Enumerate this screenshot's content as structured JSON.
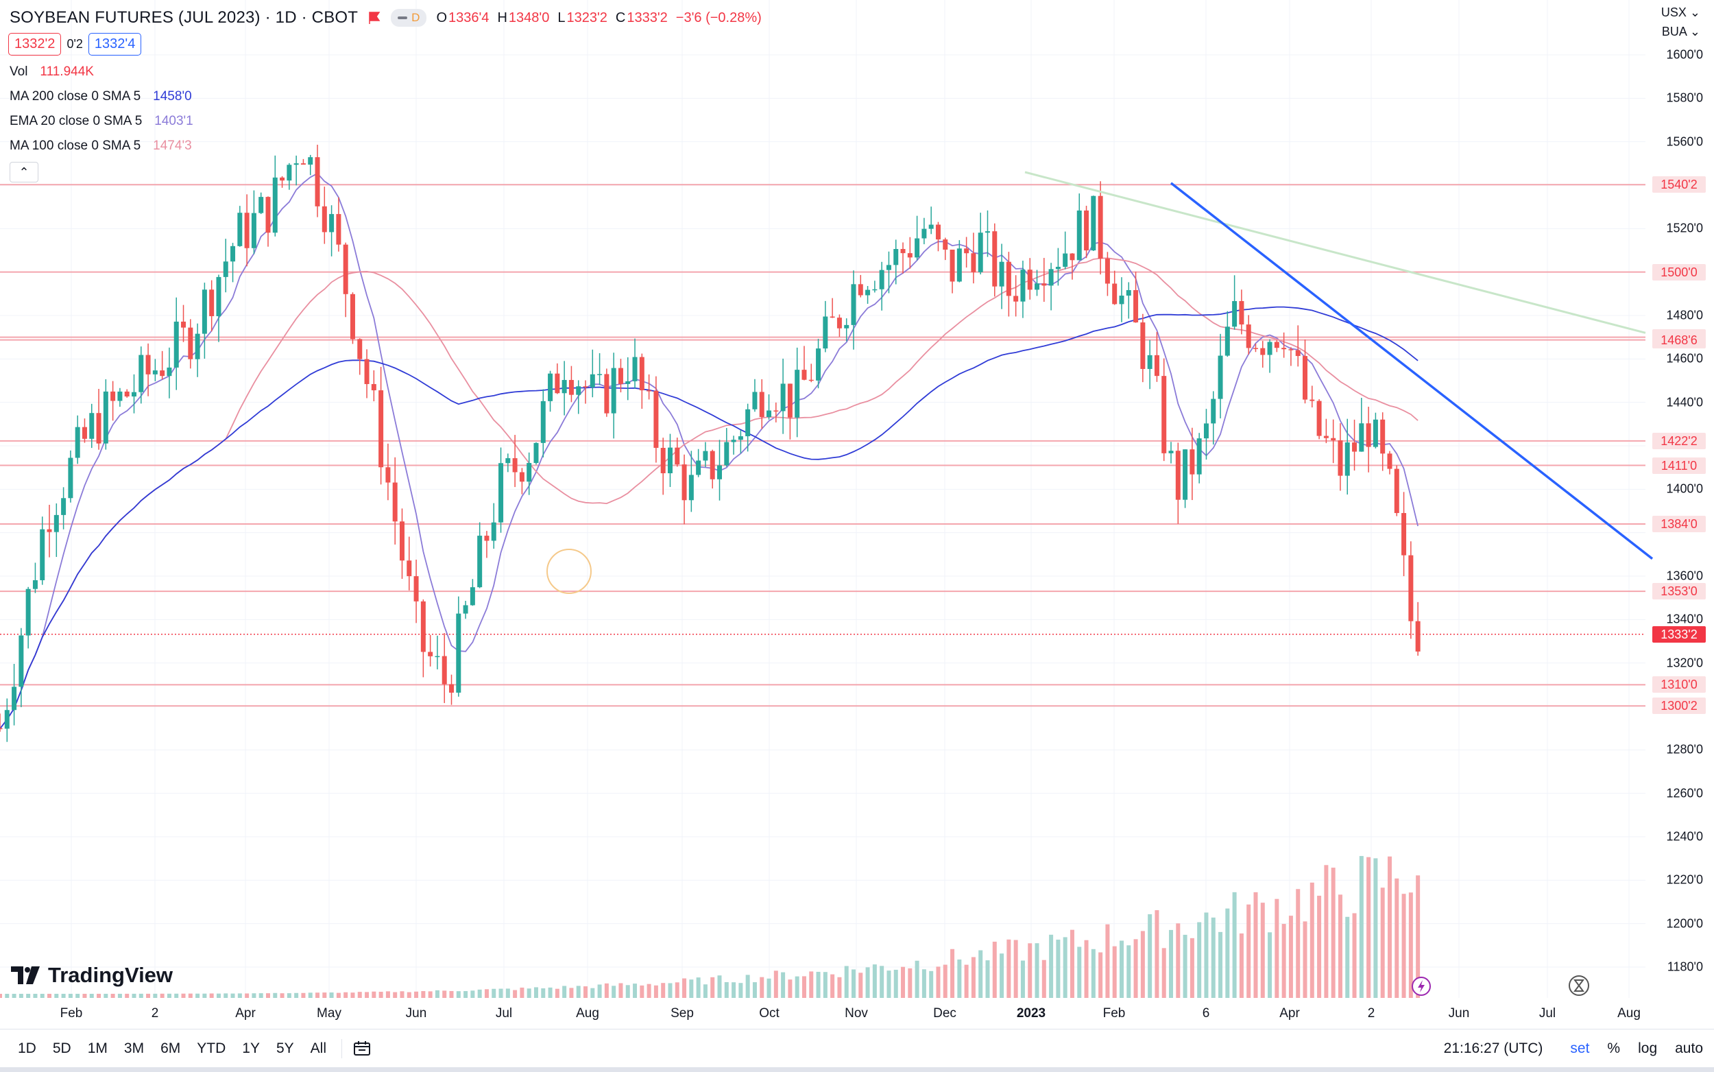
{
  "header": {
    "title": "SOYBEAN FUTURES (JUL 2023) · 1D · CBOT",
    "pill_letter": "D",
    "ohlc": [
      {
        "k": "O",
        "v": "1336'4"
      },
      {
        "k": "H",
        "v": "1348'0"
      },
      {
        "k": "L",
        "v": "1323'2"
      },
      {
        "k": "C",
        "v": "1333'2"
      }
    ],
    "change": "−3'6 (−0.28%)",
    "bid": "1332'2",
    "spread": "0'2",
    "ask": "1332'4"
  },
  "indicators": [
    {
      "label": "Vol",
      "params": "",
      "value": "111.944K",
      "color": "#f23645"
    },
    {
      "label": "MA",
      "params": "200 close 0 SMA 5",
      "value": "1458'0",
      "color": "#2f3bd6"
    },
    {
      "label": "EMA",
      "params": "20 close 0 SMA 5",
      "value": "1403'1",
      "color": "#8b7bd8"
    },
    {
      "label": "MA",
      "params": "100 close 0 SMA 5",
      "value": "1474'3",
      "color": "#e98fa0"
    }
  ],
  "top_right": {
    "currency": "USX",
    "unit": "BUA"
  },
  "toolbar": {
    "timeframes": [
      "1D",
      "5D",
      "1M",
      "3M",
      "6M",
      "YTD",
      "1Y",
      "5Y",
      "All"
    ],
    "time": "21:16:27 (UTC)",
    "set_label": "set",
    "percent_label": "%",
    "log_label": "log",
    "auto_label": "auto"
  },
  "logo_text": "TradingView",
  "chart_data": {
    "type": "candlestick",
    "symbol": "SOYBEAN FUTURES (JUL 2023)",
    "interval": "1D",
    "exchange": "CBOT",
    "y_ticks": [
      "1600'0",
      "1580'0",
      "1560'0",
      "1540'0",
      "1520'0",
      "1500'0",
      "1480'0",
      "1460'0",
      "1440'0",
      "1420'0",
      "1400'0",
      "1380'0",
      "1360'0",
      "1340'0",
      "1320'0",
      "1300'0",
      "1280'0",
      "1260'0",
      "1240'0",
      "1220'0",
      "1200'0",
      "1180'0"
    ],
    "ylim": [
      1165,
      1610
    ],
    "x_ticks": [
      {
        "label": "Feb",
        "bold": false
      },
      {
        "label": "2",
        "bold": false
      },
      {
        "label": "Apr",
        "bold": false
      },
      {
        "label": "May",
        "bold": false
      },
      {
        "label": "Jun",
        "bold": false
      },
      {
        "label": "Jul",
        "bold": false
      },
      {
        "label": "Aug",
        "bold": false
      },
      {
        "label": "Sep",
        "bold": false
      },
      {
        "label": "Oct",
        "bold": false
      },
      {
        "label": "Nov",
        "bold": false
      },
      {
        "label": "Dec",
        "bold": false
      },
      {
        "label": "2023",
        "bold": true
      },
      {
        "label": "Feb",
        "bold": false
      },
      {
        "label": "6",
        "bold": false
      },
      {
        "label": "Apr",
        "bold": false
      },
      {
        "label": "2",
        "bold": false
      },
      {
        "label": "Jun",
        "bold": false
      },
      {
        "label": "Jul",
        "bold": false
      },
      {
        "label": "Aug",
        "bold": false
      }
    ],
    "horizontal_levels": [
      {
        "price": 1540.25,
        "label": "1540'2"
      },
      {
        "price": 1500.0,
        "label": "1500'0"
      },
      {
        "price": 1470.0,
        "label": "1470'0"
      },
      {
        "price": 1468.75,
        "label": "1468'6"
      },
      {
        "price": 1422.25,
        "label": "1422'2"
      },
      {
        "price": 1411.0,
        "label": "1411'0"
      },
      {
        "price": 1384.0,
        "label": "1384'0"
      },
      {
        "price": 1353.0,
        "label": "1353'0"
      },
      {
        "price": 1310.0,
        "label": "1310'0"
      },
      {
        "price": 1300.25,
        "label": "1300'2"
      }
    ],
    "last_price": {
      "price": 1333.25,
      "label": "1333'2"
    },
    "trendlines": [
      {
        "color": "#2962ff",
        "from": {
          "x": "Feb 2023",
          "y": 1541
        },
        "to": {
          "x": "Aug 2023",
          "y": 1368
        }
      },
      {
        "color": "#c8e6c9",
        "from": {
          "x": "Jan 2023",
          "y": 1546
        },
        "to": {
          "x": "Aug 2023",
          "y": 1472
        }
      }
    ],
    "moving_averages": [
      {
        "name": "MA 200",
        "color": "#2f3bd6",
        "last": "1458'0"
      },
      {
        "name": "EMA 20",
        "color": "#8b7bd8",
        "last": "1403'1"
      },
      {
        "name": "MA 100",
        "color": "#e98fa0",
        "last": "1474'3"
      }
    ],
    "key_points": [
      {
        "date": "Jun 2022",
        "high": 1562
      },
      {
        "date": "Jul 2022",
        "low": 1310
      },
      {
        "date": "Aug 2022",
        "low": 1300
      },
      {
        "date": "Jan 2023",
        "high": 1546
      },
      {
        "date": "Mar 2023",
        "low": 1386
      },
      {
        "date": "May 2023",
        "close": 1333.25,
        "low": 1323.25
      }
    ],
    "volume": {
      "last": "111.944K"
    }
  }
}
